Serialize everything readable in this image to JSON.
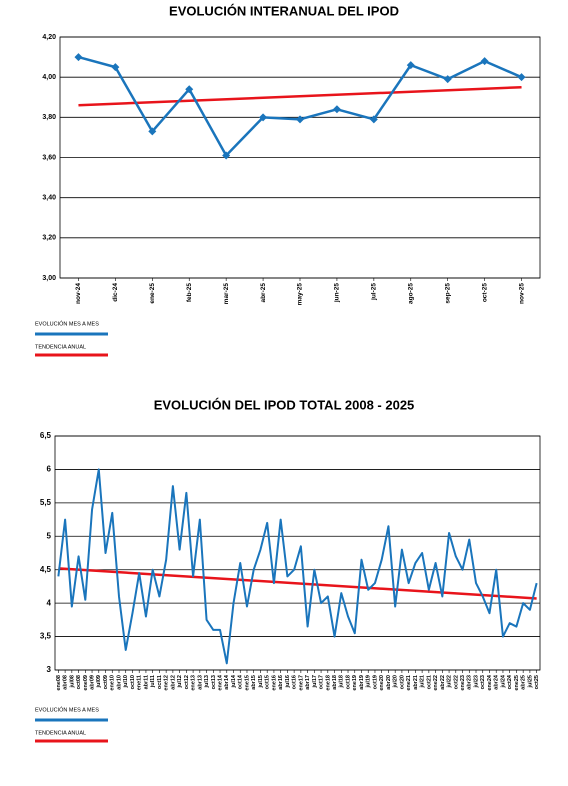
{
  "chart_data": [
    {
      "type": "line",
      "title": "EVOLUCIÓN INTERANUAL DEL IPOD",
      "categories": [
        "nov-24",
        "dic-24",
        "ene-25",
        "feb-25",
        "mar-25",
        "abr-25",
        "may-25",
        "jun-25",
        "jul-25",
        "ago-25",
        "sep-25",
        "oct-25",
        "nov-25"
      ],
      "series": [
        {
          "name": "EVOLUCIÓN MES A MES",
          "color": "#1a75bc",
          "values": [
            4.1,
            4.05,
            3.73,
            3.94,
            3.61,
            3.8,
            3.79,
            3.84,
            3.79,
            4.06,
            3.99,
            4.08,
            4.0
          ]
        }
      ],
      "trend": {
        "name": "TENDENCIA ANUAL",
        "color": "#e8141b",
        "values": [
          3.86,
          3.95
        ]
      },
      "ylim": [
        3,
        4.2
      ],
      "yticks": [
        {
          "value": 3,
          "label": "3,00"
        },
        {
          "value": 3.2,
          "label": "3,20"
        },
        {
          "value": 3.4,
          "label": "3,40"
        },
        {
          "value": 3.6,
          "label": "3,60"
        },
        {
          "value": 3.8,
          "label": "3,80"
        },
        {
          "value": 4,
          "label": "4,00"
        },
        {
          "value": 4.2,
          "label": "4,20"
        }
      ],
      "grid": true,
      "markers": true
    },
    {
      "type": "line",
      "title": "EVOLUCIÓN DEL IPOD TOTAL 2008 - 2025",
      "categories": [
        "ene08",
        "abr08",
        "jul08",
        "oct08",
        "ene09",
        "abr09",
        "jul09",
        "oct09",
        "ene10",
        "abr10",
        "jul10",
        "oct10",
        "ene11",
        "abr11",
        "jul11",
        "oct11",
        "ene12",
        "abr12",
        "jul12",
        "oct12",
        "ene13",
        "abr13",
        "jul13",
        "oct13",
        "ene14",
        "abr14",
        "jul14",
        "oct14",
        "ene15",
        "abr15",
        "jul15",
        "oct15",
        "ene16",
        "abr16",
        "jul16",
        "oct16",
        "ene17",
        "abr17",
        "jul17",
        "oct17",
        "ene18",
        "abr18",
        "jul18",
        "oct18",
        "ene19",
        "abr19",
        "jul19",
        "oct19",
        "ene20",
        "abr20",
        "jul20",
        "oct20",
        "ene21",
        "abr21",
        "jul21",
        "oct21",
        "ene22",
        "abr22",
        "jul22",
        "oct22",
        "ene23",
        "abr23",
        "jul23",
        "oct23",
        "ene24",
        "abr24",
        "jul24",
        "oct24",
        "ene25",
        "abr25",
        "jul25",
        "oct25"
      ],
      "series": [
        {
          "name": "EVOLUCIÓN MES A MES",
          "color": "#1a75bc",
          "values": [
            4.4,
            5.25,
            3.95,
            4.7,
            4.05,
            5.4,
            6.0,
            4.75,
            5.35,
            4.1,
            3.3,
            3.85,
            4.45,
            3.8,
            4.5,
            4.1,
            4.65,
            5.75,
            4.8,
            5.65,
            4.4,
            5.25,
            3.75,
            3.6,
            3.6,
            3.1,
            4.0,
            4.6,
            3.95,
            4.5,
            4.8,
            5.2,
            4.3,
            5.25,
            4.4,
            4.5,
            4.85,
            3.65,
            4.5,
            4.0,
            4.1,
            3.5,
            4.15,
            3.8,
            3.55,
            4.65,
            4.2,
            4.3,
            4.65,
            5.15,
            3.95,
            4.8,
            4.3,
            4.6,
            4.75,
            4.2,
            4.6,
            4.1,
            5.05,
            4.7,
            4.5,
            4.95,
            4.3,
            4.1,
            3.85,
            4.5,
            3.5,
            3.7,
            3.65,
            4.0,
            3.9,
            4.3
          ]
        }
      ],
      "trend": {
        "name": "TENDENCIA ANUAL",
        "color": "#e8141b",
        "values": [
          4.52,
          4.07
        ]
      },
      "ylim": [
        3,
        6.5
      ],
      "yticks": [
        3,
        {
          "value": 3.5,
          "label": "3,5"
        },
        4,
        {
          "value": 4.5,
          "label": "4,5"
        },
        5,
        {
          "value": 5.5,
          "label": "5,5"
        },
        6,
        {
          "value": 6.5,
          "label": "6,5"
        }
      ],
      "grid": true,
      "markers": false
    }
  ]
}
